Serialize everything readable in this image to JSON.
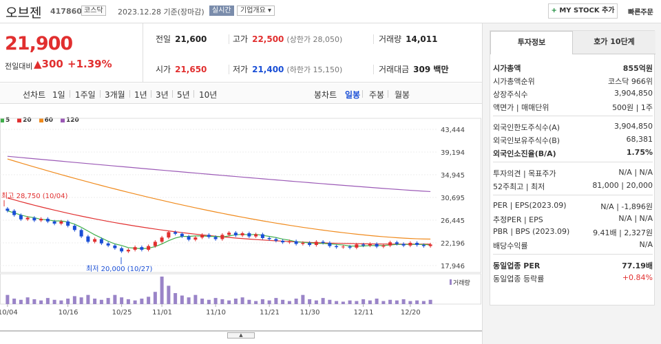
{
  "header": {
    "name": "오브젠",
    "code": "417860",
    "market": "코스닥",
    "date": "2023.12.28 기준(장마감)",
    "live": "실시간",
    "company_info": "기업개요",
    "mystock": "MY STOCK 추가",
    "quick_order": "빠른주문"
  },
  "price": {
    "current": "21,900",
    "change_label": "전일대비",
    "change": "300",
    "pct": "+1.39%"
  },
  "quote": {
    "prev_label": "전일",
    "prev": "21,600",
    "high_label": "고가",
    "high": "22,500",
    "upper": "(상한가 28,050)",
    "vol_label": "거래량",
    "vol": "14,011",
    "open_label": "시가",
    "open": "21,650",
    "low_label": "저가",
    "low": "21,400",
    "lower": "(하한가 15,150)",
    "amt_label": "거래대금",
    "amt": "309 백만"
  },
  "periods": {
    "line_label": "선차트",
    "items": [
      "1일",
      "1주일",
      "3개월",
      "1년",
      "3년",
      "5년",
      "10년"
    ],
    "candle_label": "봉차트",
    "candle_items": [
      "일봉",
      "주봉",
      "월봉"
    ]
  },
  "chart_data": {
    "type": "candlestick",
    "legend": [
      "5",
      "20",
      "60",
      "120"
    ],
    "legend_colors": [
      "#3fae49",
      "#e12f2f",
      "#f08a1c",
      "#9b59b6"
    ],
    "y_ticks": [
      "43,444",
      "39,194",
      "34,945",
      "30,695",
      "26,445",
      "22,196",
      "17,946"
    ],
    "x_ticks": [
      "10/04",
      "10/16",
      "10/25",
      "11/01",
      "11/10",
      "11/21",
      "11/30",
      "12/11",
      "12/20"
    ],
    "ylim": [
      17946,
      43444
    ],
    "high_annotation": "최고 28,750 (10/04)",
    "low_annotation": "최저 20,000 (10/27)",
    "volume_label": "거래량",
    "closes": [
      28200,
      27400,
      26600,
      26900,
      26400,
      26700,
      26200,
      25800,
      26200,
      25400,
      24600,
      23400,
      22400,
      22900,
      22100,
      21700,
      21200,
      20600,
      20900,
      21400,
      20900,
      21600,
      22400,
      23200,
      24200,
      23900,
      23400,
      22800,
      23200,
      23700,
      23300,
      22900,
      23700,
      24100,
      23600,
      24000,
      23400,
      23800,
      23100,
      22900,
      22600,
      22300,
      22500,
      22000,
      22200,
      21800,
      22400,
      22200,
      21600,
      21400,
      21500,
      21300,
      21900,
      21700,
      22000,
      21500,
      21700,
      22300,
      22000,
      21700,
      22200,
      21800,
      21600,
      21900
    ],
    "ma5": [
      28200,
      27800,
      27400,
      27100,
      26900,
      26600,
      26500,
      26300,
      26300,
      26100,
      25700,
      25100,
      24400,
      23700,
      23100,
      22500,
      22000,
      21700,
      21300,
      21200,
      21100,
      21200,
      21500,
      22000,
      22600,
      23100,
      23400,
      23400,
      23500,
      23500,
      23400,
      23400,
      23300,
      23500,
      23700,
      23800,
      23700,
      23800,
      23600,
      23400,
      23200,
      22900,
      22700,
      22400,
      22300,
      22200,
      22100,
      22100,
      22000,
      21900,
      21800,
      21600,
      21600,
      21600,
      21700,
      21700,
      21700,
      21800,
      21900,
      21900,
      21900,
      21900,
      21900,
      21800
    ],
    "ma20_start": 30600,
    "ma20_end": 21950,
    "ma60_start": 37900,
    "ma60_end": 22900,
    "ma120_start": 38400,
    "ma120_end": 31800,
    "volumes": [
      30,
      18,
      14,
      22,
      16,
      12,
      20,
      14,
      12,
      18,
      26,
      22,
      30,
      18,
      14,
      20,
      30,
      22,
      16,
      12,
      18,
      24,
      40,
      90,
      60,
      36,
      28,
      22,
      30,
      18,
      14,
      20,
      16,
      12,
      18,
      22,
      14,
      10,
      16,
      12,
      20,
      14,
      10,
      18,
      30,
      16,
      12,
      20,
      14,
      10,
      8,
      12,
      10,
      16,
      12,
      18,
      10,
      14,
      12,
      16,
      10,
      12,
      10,
      14
    ]
  },
  "info": {
    "tabs": [
      "투자정보",
      "호가 10단계"
    ],
    "rows1": [
      {
        "l": "시가총액",
        "r": "855억원",
        "bold": true
      },
      {
        "l": "시가총액순위",
        "r": "코스닥 966위"
      },
      {
        "l": "상장주식수",
        "r": "3,904,850"
      },
      {
        "l": "액면가 | 매매단위",
        "r": "500원 | 1주"
      }
    ],
    "rows2": [
      {
        "l": "외국인한도주식수(A)",
        "r": "3,904,850"
      },
      {
        "l": "외국인보유주식수(B)",
        "r": "68,381"
      },
      {
        "l": "외국인소진율(B/A)",
        "r": "1.75%",
        "bold": true
      }
    ],
    "rows3": [
      {
        "l": "투자의견 | 목표주가",
        "r": "N/A | N/A"
      },
      {
        "l": "52주최고 | 최저",
        "r": "81,000 | 20,000"
      }
    ],
    "rows4": [
      {
        "l": "PER | EPS(2023.09)",
        "r": "N/A | -1,896원"
      },
      {
        "l": "추정PER | EPS",
        "r": "N/A | N/A"
      },
      {
        "l": "PBR | BPS (2023.09)",
        "r": "9.41배 | 2,327원"
      },
      {
        "l": "배당수익률",
        "r": "N/A"
      }
    ],
    "rows5": [
      {
        "l": "동일업종 PER",
        "r": "77.19배",
        "bold": true
      },
      {
        "l": "동일업종 등락률",
        "r": "+0.84%",
        "red": true
      }
    ]
  }
}
